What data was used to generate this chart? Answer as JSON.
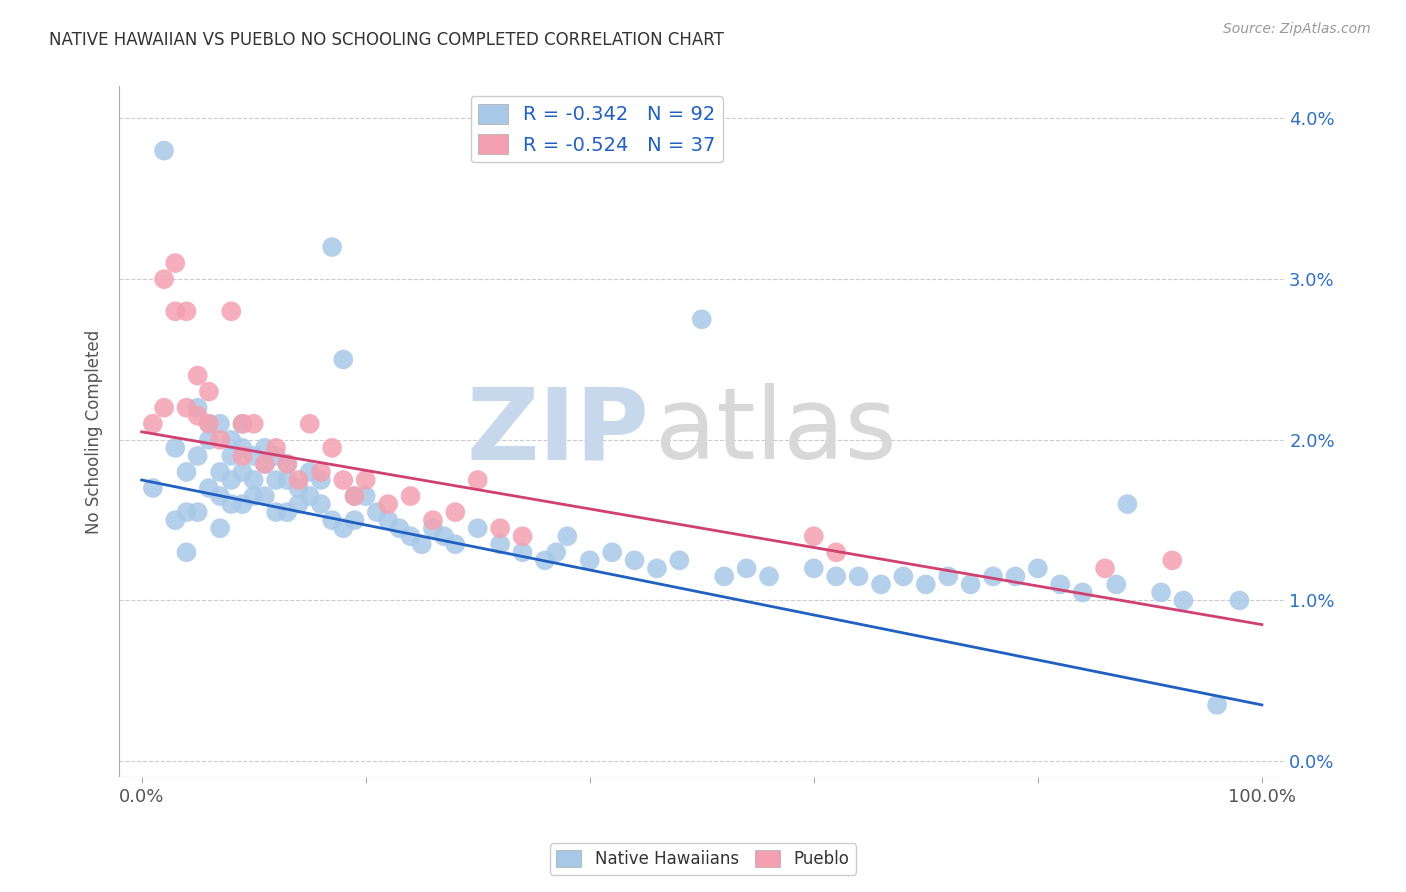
{
  "title": "NATIVE HAWAIIAN VS PUEBLO NO SCHOOLING COMPLETED CORRELATION CHART",
  "source": "Source: ZipAtlas.com",
  "ylabel": "No Schooling Completed",
  "yticks_labels": [
    "0.0%",
    "1.0%",
    "2.0%",
    "3.0%",
    "4.0%"
  ],
  "ytick_vals": [
    0.0,
    0.01,
    0.02,
    0.03,
    0.04
  ],
  "xtick_vals": [
    0.0,
    0.2,
    0.4,
    0.6,
    0.8,
    1.0
  ],
  "xlim": [
    -0.02,
    1.02
  ],
  "ylim": [
    -0.001,
    0.042
  ],
  "legend_label1": "Native Hawaiians",
  "legend_label2": "Pueblo",
  "r1": -0.342,
  "n1": 92,
  "r2": -0.524,
  "n2": 37,
  "color_blue": "#a8c8e8",
  "color_pink": "#f4a0b0",
  "line_blue": "#2060c0",
  "line_pink": "#d04070",
  "watermark_zip": "ZIP",
  "watermark_atlas": "atlas",
  "background_color": "#ffffff",
  "grid_color": "#cccccc",
  "nh_x": [
    0.01,
    0.02,
    0.03,
    0.03,
    0.04,
    0.04,
    0.04,
    0.05,
    0.05,
    0.05,
    0.06,
    0.06,
    0.06,
    0.07,
    0.07,
    0.07,
    0.07,
    0.08,
    0.08,
    0.08,
    0.08,
    0.09,
    0.09,
    0.09,
    0.09,
    0.1,
    0.1,
    0.1,
    0.11,
    0.11,
    0.11,
    0.12,
    0.12,
    0.12,
    0.13,
    0.13,
    0.13,
    0.14,
    0.14,
    0.15,
    0.15,
    0.16,
    0.16,
    0.17,
    0.17,
    0.18,
    0.18,
    0.19,
    0.19,
    0.2,
    0.21,
    0.22,
    0.23,
    0.24,
    0.25,
    0.26,
    0.27,
    0.28,
    0.3,
    0.32,
    0.34,
    0.36,
    0.37,
    0.38,
    0.4,
    0.42,
    0.44,
    0.46,
    0.48,
    0.5,
    0.52,
    0.54,
    0.56,
    0.6,
    0.62,
    0.64,
    0.66,
    0.68,
    0.7,
    0.72,
    0.74,
    0.76,
    0.78,
    0.8,
    0.82,
    0.84,
    0.87,
    0.88,
    0.91,
    0.93,
    0.96,
    0.98
  ],
  "nh_y": [
    0.017,
    0.038,
    0.0195,
    0.015,
    0.018,
    0.0155,
    0.013,
    0.022,
    0.019,
    0.0155,
    0.021,
    0.02,
    0.017,
    0.021,
    0.018,
    0.0165,
    0.0145,
    0.02,
    0.019,
    0.0175,
    0.016,
    0.021,
    0.0195,
    0.018,
    0.016,
    0.019,
    0.0175,
    0.0165,
    0.0195,
    0.0185,
    0.0165,
    0.019,
    0.0175,
    0.0155,
    0.0185,
    0.0175,
    0.0155,
    0.017,
    0.016,
    0.018,
    0.0165,
    0.0175,
    0.016,
    0.032,
    0.015,
    0.025,
    0.0145,
    0.0165,
    0.015,
    0.0165,
    0.0155,
    0.015,
    0.0145,
    0.014,
    0.0135,
    0.0145,
    0.014,
    0.0135,
    0.0145,
    0.0135,
    0.013,
    0.0125,
    0.013,
    0.014,
    0.0125,
    0.013,
    0.0125,
    0.012,
    0.0125,
    0.0275,
    0.0115,
    0.012,
    0.0115,
    0.012,
    0.0115,
    0.0115,
    0.011,
    0.0115,
    0.011,
    0.0115,
    0.011,
    0.0115,
    0.0115,
    0.012,
    0.011,
    0.0105,
    0.011,
    0.016,
    0.0105,
    0.01,
    0.0035,
    0.01
  ],
  "pueblo_x": [
    0.01,
    0.02,
    0.02,
    0.03,
    0.03,
    0.04,
    0.04,
    0.05,
    0.05,
    0.06,
    0.06,
    0.07,
    0.08,
    0.09,
    0.09,
    0.1,
    0.11,
    0.12,
    0.13,
    0.14,
    0.15,
    0.16,
    0.17,
    0.18,
    0.19,
    0.2,
    0.22,
    0.24,
    0.26,
    0.28,
    0.3,
    0.32,
    0.34,
    0.6,
    0.62,
    0.86,
    0.92
  ],
  "pueblo_y": [
    0.021,
    0.022,
    0.03,
    0.028,
    0.031,
    0.028,
    0.022,
    0.024,
    0.0215,
    0.023,
    0.021,
    0.02,
    0.028,
    0.021,
    0.019,
    0.021,
    0.0185,
    0.0195,
    0.0185,
    0.0175,
    0.021,
    0.018,
    0.0195,
    0.0175,
    0.0165,
    0.0175,
    0.016,
    0.0165,
    0.015,
    0.0155,
    0.0175,
    0.0145,
    0.014,
    0.014,
    0.013,
    0.012,
    0.0125
  ]
}
